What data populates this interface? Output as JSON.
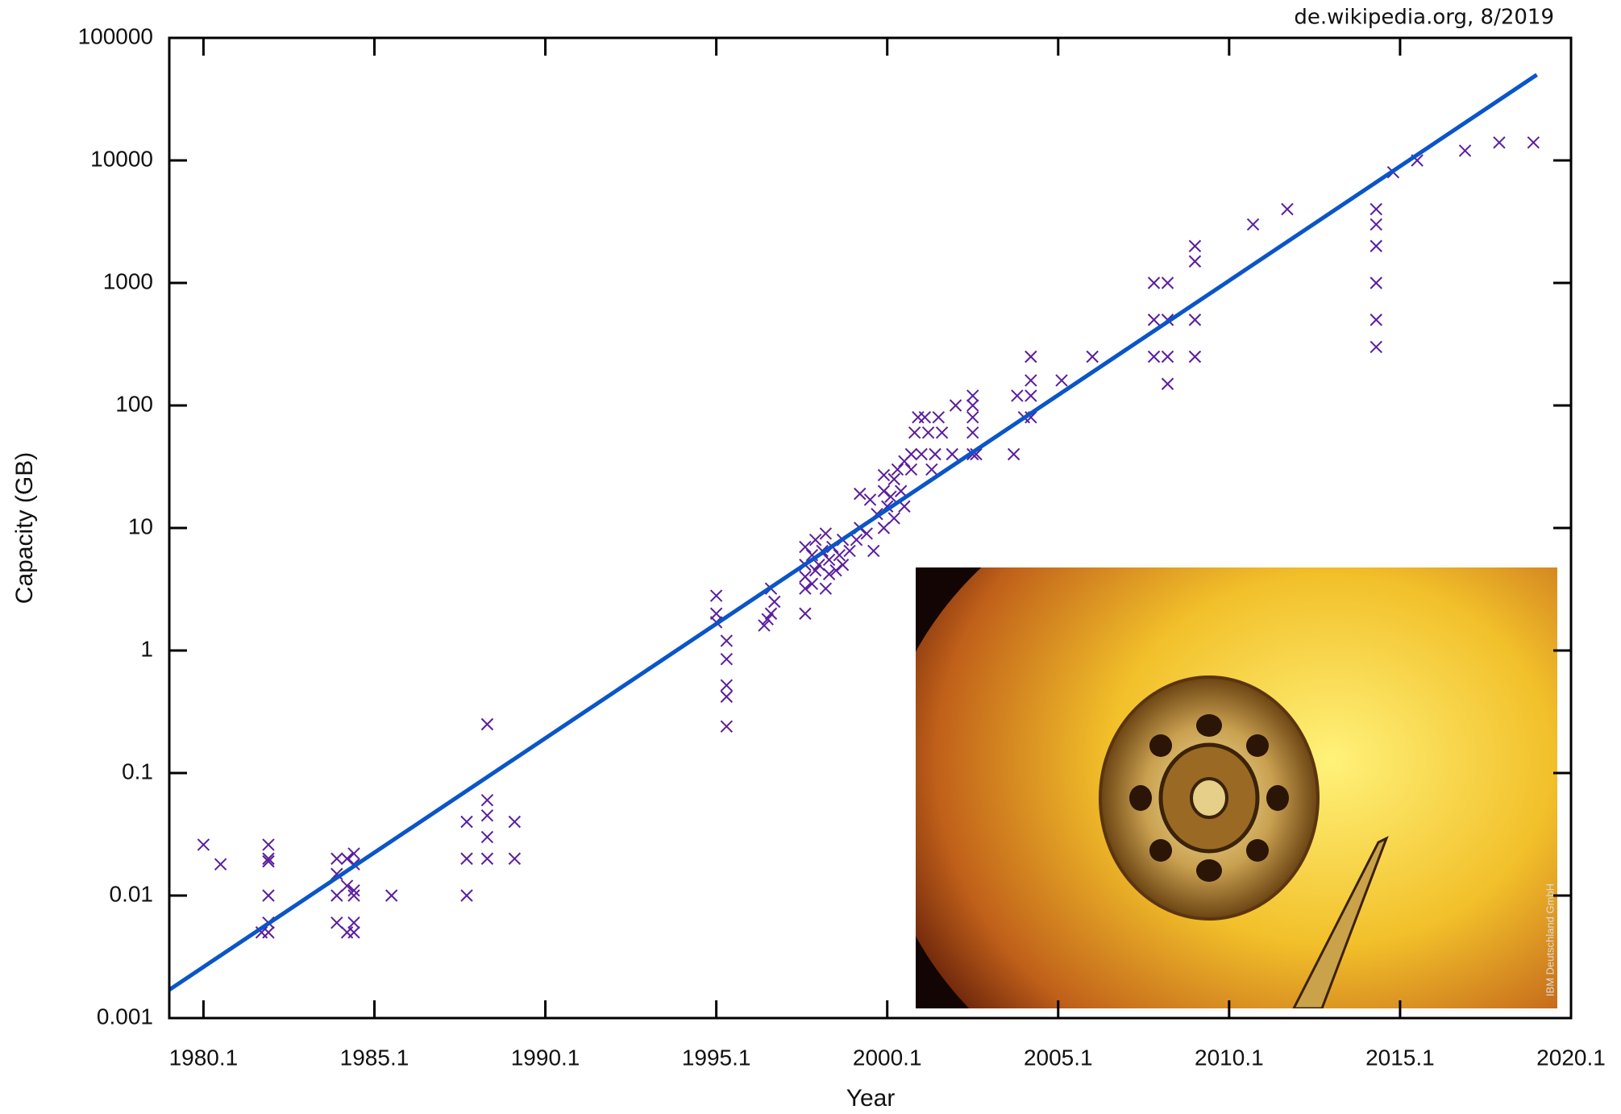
{
  "chart_data": {
    "type": "scatter",
    "source": "de.wikipedia.org, 8/2019",
    "image_credit": "IBM Deutschland GmbH",
    "x_label": "Year",
    "y_label": "Capacity (GB)",
    "xlim": [
      1979.1,
      2020.1
    ],
    "ylim": [
      0.001,
      100000
    ],
    "ylog": true,
    "xticks": [
      1980.1,
      1985.1,
      1990.1,
      1995.1,
      2000.1,
      2005.1,
      2010.1,
      2015.1,
      2020.1
    ],
    "yticks": [
      0.001,
      0.01,
      0.1,
      1,
      10,
      100,
      1000,
      10000,
      100000
    ],
    "series": [
      {
        "kind": "scatter",
        "marker": "x",
        "color": "#5a1e9e",
        "x": [
          1980.1,
          1980.6,
          1981.8,
          1982.0,
          1982.0,
          1982.0,
          1982.0,
          1982.0,
          1982.0,
          1984.0,
          1984.0,
          1984.0,
          1984.0,
          1984.3,
          1984.3,
          1984.3,
          1984.5,
          1984.5,
          1984.5,
          1984.5,
          1984.5,
          1984.5,
          1985.6,
          1987.8,
          1987.8,
          1987.8,
          1988.4,
          1988.4,
          1988.4,
          1988.4,
          1988.4,
          1989.2,
          1989.2,
          1995.1,
          1995.1,
          1995.1,
          1995.4,
          1995.4,
          1995.4,
          1995.4,
          1995.4,
          1996.5,
          1996.6,
          1996.7,
          1996.8,
          1996.7,
          1997.7,
          1997.7,
          1997.7,
          1997.7,
          1997.7,
          1997.9,
          1997.9,
          1998.0,
          1998.0,
          1998.1,
          1998.2,
          1998.3,
          1998.3,
          1998.4,
          1998.4,
          1998.5,
          1998.6,
          1998.7,
          1998.8,
          1998.8,
          1999.0,
          1999.2,
          1999.3,
          1999.3,
          1999.5,
          1999.6,
          1999.7,
          1999.8,
          2000.0,
          2000.0,
          2000.0,
          2000.1,
          2000.2,
          2000.3,
          2000.3,
          2000.4,
          2000.5,
          2000.6,
          2000.6,
          2000.8,
          2000.8,
          2000.9,
          2001.0,
          2001.1,
          2001.2,
          2001.3,
          2001.4,
          2001.5,
          2001.6,
          2001.7,
          2002.0,
          2002.1,
          2002.6,
          2002.6,
          2002.6,
          2002.6,
          2002.6,
          2002.7,
          2003.8,
          2003.9,
          2004.1,
          2004.3,
          2004.3,
          2004.3,
          2004.3,
          2005.2,
          2006.1,
          2007.9,
          2007.9,
          2007.9,
          2008.3,
          2008.3,
          2008.3,
          2008.3,
          2009.1,
          2009.1,
          2009.1,
          2009.1,
          2010.8,
          2011.8,
          2014.4,
          2014.4,
          2014.4,
          2014.4,
          2014.4,
          2014.4,
          2014.9,
          2015.6,
          2017.0,
          2018.0,
          2019.0
        ],
        "values": [
          0.026,
          0.018,
          0.005,
          0.026,
          0.02,
          0.019,
          0.01,
          0.006,
          0.005,
          0.02,
          0.015,
          0.01,
          0.006,
          0.02,
          0.012,
          0.005,
          0.022,
          0.018,
          0.011,
          0.01,
          0.006,
          0.005,
          0.01,
          0.04,
          0.02,
          0.01,
          0.25,
          0.06,
          0.045,
          0.03,
          0.02,
          0.04,
          0.02,
          2.8,
          2,
          1.7,
          1.2,
          0.85,
          0.52,
          0.42,
          0.24,
          1.6,
          1.8,
          2,
          2.5,
          3.2,
          2,
          3.2,
          4,
          5,
          7,
          3.5,
          6,
          4.5,
          8,
          5,
          6.5,
          3.2,
          9,
          4.2,
          5.5,
          7,
          4.5,
          6,
          8,
          5,
          6.5,
          8,
          10,
          19,
          9,
          17,
          6.5,
          13,
          10,
          20,
          27,
          15,
          18,
          25,
          12,
          30,
          20,
          35,
          15,
          40,
          30,
          60,
          80,
          40,
          80,
          60,
          30,
          40,
          80,
          60,
          40,
          100,
          120,
          100,
          80,
          60,
          40,
          40,
          40,
          120,
          80,
          250,
          160,
          120,
          80,
          160,
          250,
          1000,
          500,
          250,
          1000,
          500,
          250,
          150,
          2000,
          1500,
          500,
          250,
          3000,
          4000,
          4000,
          3000,
          2000,
          1000,
          500,
          300,
          8000,
          10000,
          12000,
          14000,
          14000
        ]
      },
      {
        "kind": "line",
        "color": "#0a55c8",
        "x": [
          1979.1,
          2019.1
        ],
        "values": [
          0.0017,
          50000
        ]
      }
    ]
  }
}
